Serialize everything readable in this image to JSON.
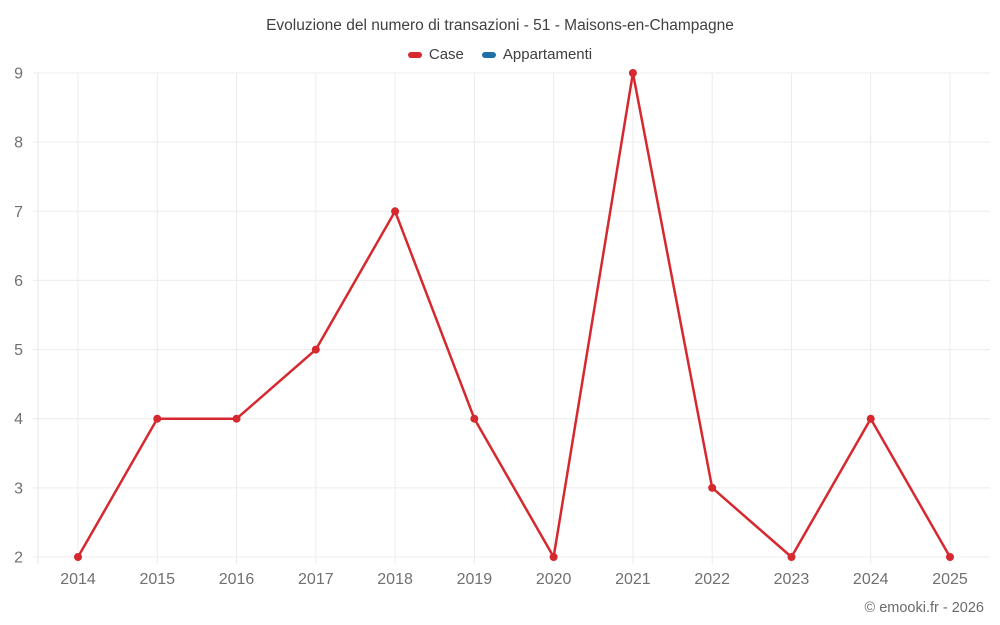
{
  "chart": {
    "title": "Evoluzione del numero di transazioni - 51 - Maisons-en-Champagne",
    "legend": [
      {
        "label": "Case",
        "color": "#d6292f"
      },
      {
        "label": "Appartamenti",
        "color": "#1d6fa5"
      }
    ]
  },
  "chart_data": {
    "type": "line",
    "title": "Evoluzione del numero di transazioni - 51 - Maisons-en-Champagne",
    "categories": [
      "2014",
      "2015",
      "2016",
      "2017",
      "2018",
      "2019",
      "2020",
      "2021",
      "2022",
      "2023",
      "2024",
      "2025"
    ],
    "series": [
      {
        "name": "Case",
        "color": "#d6292f",
        "marker": "circle",
        "values": [
          2,
          4,
          4,
          5,
          7,
          4,
          2,
          9,
          3,
          2,
          4,
          2
        ]
      },
      {
        "name": "Appartamenti",
        "color": "#1d6fa5",
        "marker": "circle",
        "values": []
      }
    ],
    "xlabel": "",
    "ylabel": "",
    "y_ticks": [
      2,
      3,
      4,
      5,
      6,
      7,
      8,
      9
    ],
    "ylim": [
      2,
      9
    ],
    "grid": true,
    "legend_position": "top"
  },
  "style": {
    "grid_color": "#ececec",
    "axis_color": "#e4e4e4",
    "tick_label_color": "#707070",
    "title_color": "#404040",
    "background": "#ffffff"
  },
  "footer": {
    "copyright": "© emooki.fr - 2026"
  }
}
